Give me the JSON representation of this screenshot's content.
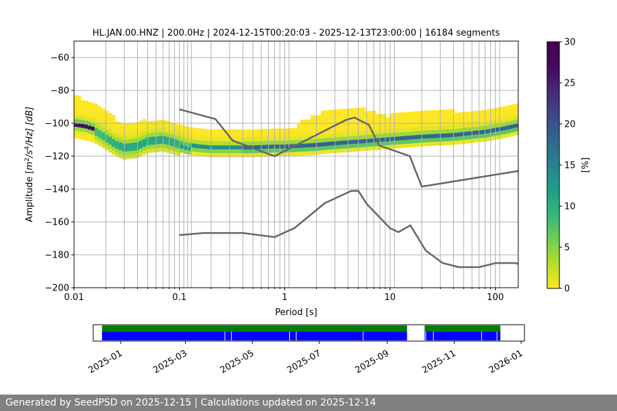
{
  "chart_data": [
    {
      "type": "heatmap",
      "title": "HL.JAN.00.HNZ | 200.0Hz | 2024-12-15T00:20:03 - 2025-12-13T23:00:00 | 16184 segments",
      "xlabel": "Period [s]",
      "ylabel": "Amplitude [m²/s⁴/Hz] [dB]",
      "ylabel_parts": {
        "prefix": "Amplitude [",
        "m": "m",
        "s_exp": "2",
        "s": "/s",
        "s4_exp": "4",
        "hz": "/Hz] [dB]"
      },
      "x_scale": "log",
      "xlim": [
        0.01,
        165
      ],
      "ylim": [
        -200,
        -50
      ],
      "x_ticks": [
        0.01,
        0.1,
        1,
        10,
        100
      ],
      "x_tick_labels": [
        "0.01",
        "0.1",
        "1",
        "10",
        "100"
      ],
      "y_ticks": [
        -200,
        -180,
        -160,
        -140,
        -120,
        -100,
        -80,
        -60
      ],
      "y_tick_labels": [
        "−200",
        "−180",
        "−160",
        "−140",
        "−120",
        "−100",
        "−80",
        "−60"
      ],
      "grid": true,
      "colorbar": {
        "label": "[%]",
        "range": [
          0,
          30
        ],
        "ticks": [
          0,
          5,
          10,
          15,
          20,
          25,
          30
        ],
        "tick_labels": [
          "0",
          "5",
          "10",
          "15",
          "20",
          "25",
          "30"
        ],
        "colormap": "viridis_r"
      },
      "ppsd_mode": {
        "period": [
          0.01,
          0.0125,
          0.016,
          0.02,
          0.025,
          0.03,
          0.04,
          0.05,
          0.07,
          0.09,
          0.12,
          0.16,
          0.2,
          0.3,
          0.5,
          0.8,
          1,
          1.5,
          2,
          3,
          5,
          8,
          10,
          20,
          40,
          80,
          120,
          165
        ],
        "db": [
          -102,
          -103,
          -105,
          -109,
          -113,
          -115,
          -114,
          -111,
          -110,
          -112,
          -115,
          -116,
          -116.5,
          -116.5,
          -116.5,
          -116,
          -116,
          -115.5,
          -115,
          -114,
          -113,
          -112,
          -111.5,
          -110,
          -109,
          -107,
          -105,
          -103
        ]
      },
      "nhnm": {
        "period": [
          0.1,
          0.22,
          0.32,
          0.8,
          3.8,
          4.6,
          6.3,
          7.9,
          15.4,
          20,
          165
        ],
        "db": [
          -91.5,
          -97.4,
          -110.5,
          -120,
          -98,
          -96.5,
          -101,
          -113.5,
          -120,
          -138.5,
          -129
        ]
      },
      "nlnm": {
        "period": [
          0.1,
          0.17,
          0.4,
          0.8,
          1.24,
          2.4,
          4.3,
          5,
          6,
          10,
          12,
          15.6,
          21.9,
          31.6,
          45,
          70,
          101,
          154,
          165
        ],
        "db": [
          -168,
          -166.7,
          -166.7,
          -169.2,
          -163.7,
          -148.6,
          -141.1,
          -141.1,
          -149,
          -163.8,
          -166.2,
          -162.1,
          -177.5,
          -185,
          -187.5,
          -187.5,
          -185,
          -185,
          -185.5
        ]
      },
      "gridline_periods": [
        0.01,
        0.02,
        0.03,
        0.04,
        0.05,
        0.06,
        0.07,
        0.08,
        0.09,
        0.1,
        0.11,
        0.12,
        0.13,
        0.2,
        0.3,
        0.4,
        0.5,
        0.6,
        0.7,
        0.8,
        0.9,
        1,
        1.1,
        2,
        3,
        4,
        5,
        6,
        7,
        8,
        9,
        10,
        11,
        20,
        30,
        40,
        50,
        60,
        70,
        80,
        90,
        100,
        110
      ]
    },
    {
      "type": "timeline",
      "x_tick_labels": [
        "2025-01",
        "2025-03",
        "2025-05",
        "2025-07",
        "2025-09",
        "2025-11",
        "2026-01"
      ],
      "x_ticks": [
        "2025-01-01",
        "2025-03-01",
        "2025-05-01",
        "2025-07-01",
        "2025-09-01",
        "2025-11-01",
        "2026-01-01"
      ],
      "xlim": [
        "2024-12-07",
        "2026-01-04"
      ],
      "colors": {
        "used": "#008000",
        "available": "#0000ff"
      },
      "used_intervals": [
        [
          "2024-12-15",
          "2025-09-19"
        ],
        [
          "2025-10-05",
          "2025-12-13"
        ]
      ],
      "available_intervals": [
        [
          "2024-12-15",
          "2025-09-19"
        ],
        [
          "2025-10-05",
          "2025-12-13"
        ]
      ],
      "gaps": [
        "2025-04-06",
        "2025-04-12",
        "2025-06-04",
        "2025-06-10",
        "2025-08-10",
        "2025-09-20",
        "2025-09-25",
        "2025-10-06",
        "2025-10-13",
        "2025-11-26",
        "2025-12-10"
      ]
    }
  ],
  "footer": {
    "text": "Generated by SeedPSD on 2025-12-15 | Calculations updated on 2025-12-14"
  }
}
